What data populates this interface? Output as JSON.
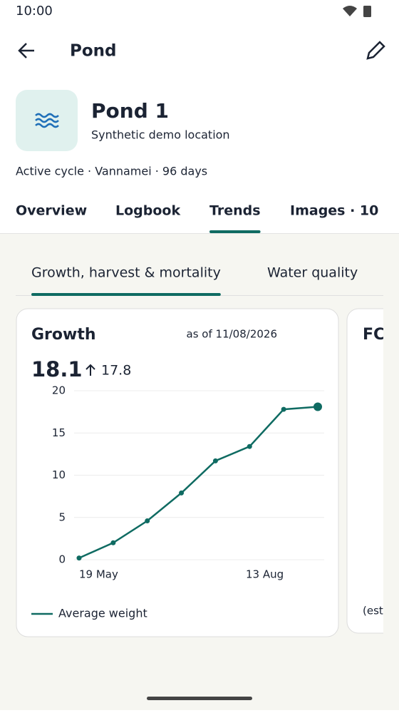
{
  "status_bar": {
    "time": "10:00"
  },
  "app_bar": {
    "title": "Pond"
  },
  "header": {
    "name": "Pond 1",
    "subtitle": "Synthetic demo location",
    "meta": "Active cycle · Vannamei · 96 days"
  },
  "tabs": {
    "items": [
      "Overview",
      "Logbook",
      "Trends",
      "Images · 10"
    ],
    "active": 2
  },
  "subtabs": {
    "items": [
      "Growth, harvest & mortality",
      "Water quality"
    ],
    "active": 0
  },
  "chart_data": {
    "type": "line",
    "title": "Growth",
    "subtitle": "as of 11/08/2026",
    "latest": 18.1,
    "previous": 17.8,
    "categories": [
      "19 May",
      null,
      null,
      null,
      null,
      null,
      "13 Aug",
      null
    ],
    "series": [
      {
        "name": "Average weight",
        "color": "#0f6b62",
        "values": [
          0.2,
          2.0,
          4.6,
          7.9,
          11.7,
          13.4,
          17.8,
          18.1
        ]
      }
    ],
    "ylim": [
      0,
      20
    ],
    "yticks": [
      0,
      5,
      10,
      15,
      20
    ],
    "grid": true
  },
  "next_card": {
    "title": "FC",
    "note": "(est"
  }
}
